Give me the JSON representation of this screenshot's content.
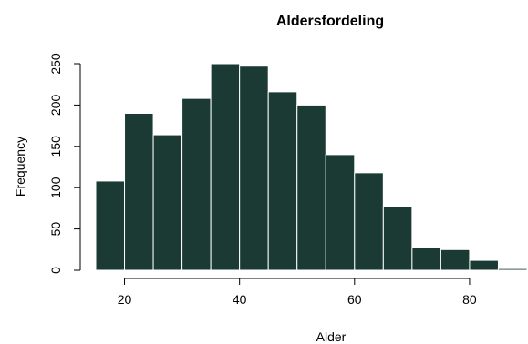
{
  "chart_data": {
    "type": "bar",
    "title": "Aldersfordeling",
    "xlabel": "Alder",
    "ylabel": "Frequency",
    "bins": [
      {
        "x0": 15,
        "x1": 20,
        "value": 108
      },
      {
        "x0": 20,
        "x1": 25,
        "value": 190
      },
      {
        "x0": 25,
        "x1": 30,
        "value": 164
      },
      {
        "x0": 30,
        "x1": 35,
        "value": 208
      },
      {
        "x0": 35,
        "x1": 40,
        "value": 250
      },
      {
        "x0": 40,
        "x1": 45,
        "value": 247
      },
      {
        "x0": 45,
        "x1": 50,
        "value": 216
      },
      {
        "x0": 50,
        "x1": 55,
        "value": 200
      },
      {
        "x0": 55,
        "x1": 60,
        "value": 140
      },
      {
        "x0": 60,
        "x1": 65,
        "value": 118
      },
      {
        "x0": 65,
        "x1": 70,
        "value": 77
      },
      {
        "x0": 70,
        "x1": 75,
        "value": 27
      },
      {
        "x0": 75,
        "x1": 80,
        "value": 25
      },
      {
        "x0": 80,
        "x1": 85,
        "value": 12
      },
      {
        "x0": 85,
        "x1": 90,
        "value": 2
      }
    ],
    "x_ticks": [
      20,
      40,
      60,
      80
    ],
    "y_ticks": [
      0,
      50,
      100,
      150,
      200,
      250
    ],
    "xlim": [
      15,
      90
    ],
    "ylim": [
      0,
      250
    ],
    "bar_color": "#1a3a33",
    "bar_edge_color": "#ffffff",
    "grid": false
  }
}
